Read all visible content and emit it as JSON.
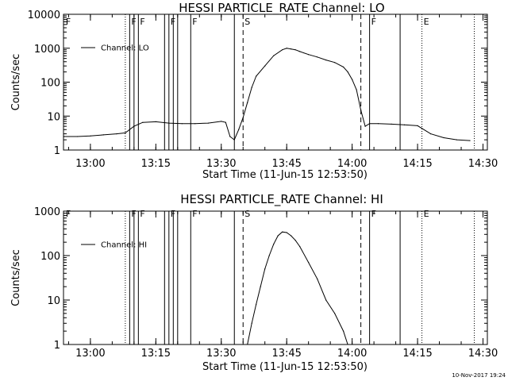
{
  "chart_data": [
    {
      "type": "line",
      "title": "HESSI PARTICLE_RATE Channel: LO",
      "xlabel": "Start Time (11-Jun-15 12:53:50)",
      "ylabel": "Counts/sec",
      "y_scale": "log",
      "xlim": [
        "12:53:50",
        "14:31:00"
      ],
      "ylim": [
        1,
        10000
      ],
      "x_ticks": [
        "13:00",
        "13:15",
        "13:30",
        "13:45",
        "14:00",
        "14:15",
        "14:30"
      ],
      "y_ticks": [
        "1",
        "10",
        "100",
        "1000",
        "10000"
      ],
      "legend": "top-left",
      "series": [
        {
          "name": "Channel: LO",
          "x": [
            "12:54",
            "12:57",
            "13:00",
            "13:03",
            "13:06",
            "13:08",
            "13:10",
            "13:12",
            "13:15",
            "13:18",
            "13:21",
            "13:24",
            "13:27",
            "13:30",
            "13:31",
            "13:32",
            "13:33",
            "13:34",
            "13:35",
            "13:36",
            "13:37",
            "13:38",
            "13:40",
            "13:42",
            "13:44",
            "13:45",
            "13:46",
            "13:47",
            "13:48",
            "13:50",
            "13:52",
            "13:54",
            "13:56",
            "13:58",
            "13:59",
            "14:00",
            "14:01",
            "14:02",
            "14:03",
            "14:04",
            "14:06",
            "14:09",
            "14:12",
            "14:15",
            "14:18",
            "14:21",
            "14:24",
            "14:27"
          ],
          "y": [
            2.5,
            2.5,
            2.6,
            2.8,
            3.0,
            3.2,
            5.0,
            6.5,
            6.8,
            6.2,
            6.0,
            6.0,
            6.2,
            7.0,
            6.5,
            2.5,
            2.0,
            4.0,
            9.0,
            25,
            70,
            150,
            300,
            600,
            900,
            1000,
            950,
            900,
            800,
            650,
            550,
            450,
            380,
            280,
            200,
            120,
            60,
            15,
            5,
            6.0,
            6.0,
            5.8,
            5.5,
            5.2,
            3.0,
            2.3,
            2.0,
            1.9
          ]
        }
      ],
      "event_markers": [
        {
          "label": "F",
          "time": "12:54",
          "style": "none"
        },
        {
          "label": "",
          "time": "13:08",
          "style": "dotted"
        },
        {
          "label": "F",
          "time": "13:09",
          "style": "solid"
        },
        {
          "label": "",
          "time": "13:10",
          "style": "solid"
        },
        {
          "label": "F",
          "time": "13:11",
          "style": "solid"
        },
        {
          "label": "",
          "time": "13:17",
          "style": "solid"
        },
        {
          "label": "F",
          "time": "13:18",
          "style": "solid"
        },
        {
          "label": "",
          "time": "13:19",
          "style": "solid"
        },
        {
          "label": "",
          "time": "13:20",
          "style": "solid"
        },
        {
          "label": "F",
          "time": "13:23",
          "style": "solid"
        },
        {
          "label": "",
          "time": "13:33",
          "style": "solid"
        },
        {
          "label": "S",
          "time": "13:35",
          "style": "dashed"
        },
        {
          "label": "",
          "time": "14:02",
          "style": "dashed"
        },
        {
          "label": "F",
          "time": "14:04",
          "style": "solid"
        },
        {
          "label": "",
          "time": "14:11",
          "style": "solid"
        },
        {
          "label": "E",
          "time": "14:16",
          "style": "dotted"
        },
        {
          "label": "",
          "time": "14:28",
          "style": "dotted"
        }
      ]
    },
    {
      "type": "line",
      "title": "HESSI PARTICLE_RATE Channel: HI",
      "xlabel": "Start Time (11-Jun-15 12:53:50)",
      "ylabel": "Counts/sec",
      "y_scale": "log",
      "xlim": [
        "12:53:50",
        "14:31:00"
      ],
      "ylim": [
        1,
        1000
      ],
      "x_ticks": [
        "13:00",
        "13:15",
        "13:30",
        "13:45",
        "14:00",
        "14:15",
        "14:30"
      ],
      "y_ticks": [
        "1",
        "10",
        "100",
        "1000"
      ],
      "legend": "top-left",
      "series": [
        {
          "name": "Channel: HI",
          "x": [
            "13:36",
            "13:37",
            "13:38",
            "13:39",
            "13:40",
            "13:41",
            "13:42",
            "13:43",
            "13:44",
            "13:45",
            "13:46",
            "13:47",
            "13:48",
            "13:50",
            "13:52",
            "13:54",
            "13:56",
            "13:58",
            "13:59"
          ],
          "y": [
            1.0,
            3.0,
            8.0,
            20,
            50,
            100,
            180,
            280,
            340,
            330,
            280,
            220,
            160,
            70,
            30,
            10,
            5,
            2,
            1.0
          ]
        }
      ],
      "event_markers": [
        {
          "label": "F",
          "time": "12:54",
          "style": "none"
        },
        {
          "label": "",
          "time": "13:08",
          "style": "dotted"
        },
        {
          "label": "F",
          "time": "13:09",
          "style": "solid"
        },
        {
          "label": "",
          "time": "13:10",
          "style": "solid"
        },
        {
          "label": "F",
          "time": "13:11",
          "style": "solid"
        },
        {
          "label": "",
          "time": "13:17",
          "style": "solid"
        },
        {
          "label": "F",
          "time": "13:18",
          "style": "solid"
        },
        {
          "label": "",
          "time": "13:19",
          "style": "solid"
        },
        {
          "label": "",
          "time": "13:20",
          "style": "solid"
        },
        {
          "label": "F",
          "time": "13:23",
          "style": "solid"
        },
        {
          "label": "",
          "time": "13:33",
          "style": "solid"
        },
        {
          "label": "S",
          "time": "13:35",
          "style": "dashed"
        },
        {
          "label": "",
          "time": "14:02",
          "style": "dashed"
        },
        {
          "label": "F",
          "time": "14:04",
          "style": "solid"
        },
        {
          "label": "",
          "time": "14:11",
          "style": "solid"
        },
        {
          "label": "E",
          "time": "14:16",
          "style": "dotted"
        },
        {
          "label": "",
          "time": "14:28",
          "style": "dotted"
        }
      ]
    }
  ],
  "footer": {
    "timestamp": "10-Nov-2017 19:24"
  },
  "colors": {
    "background": "#ffffff",
    "ink": "#000000"
  }
}
